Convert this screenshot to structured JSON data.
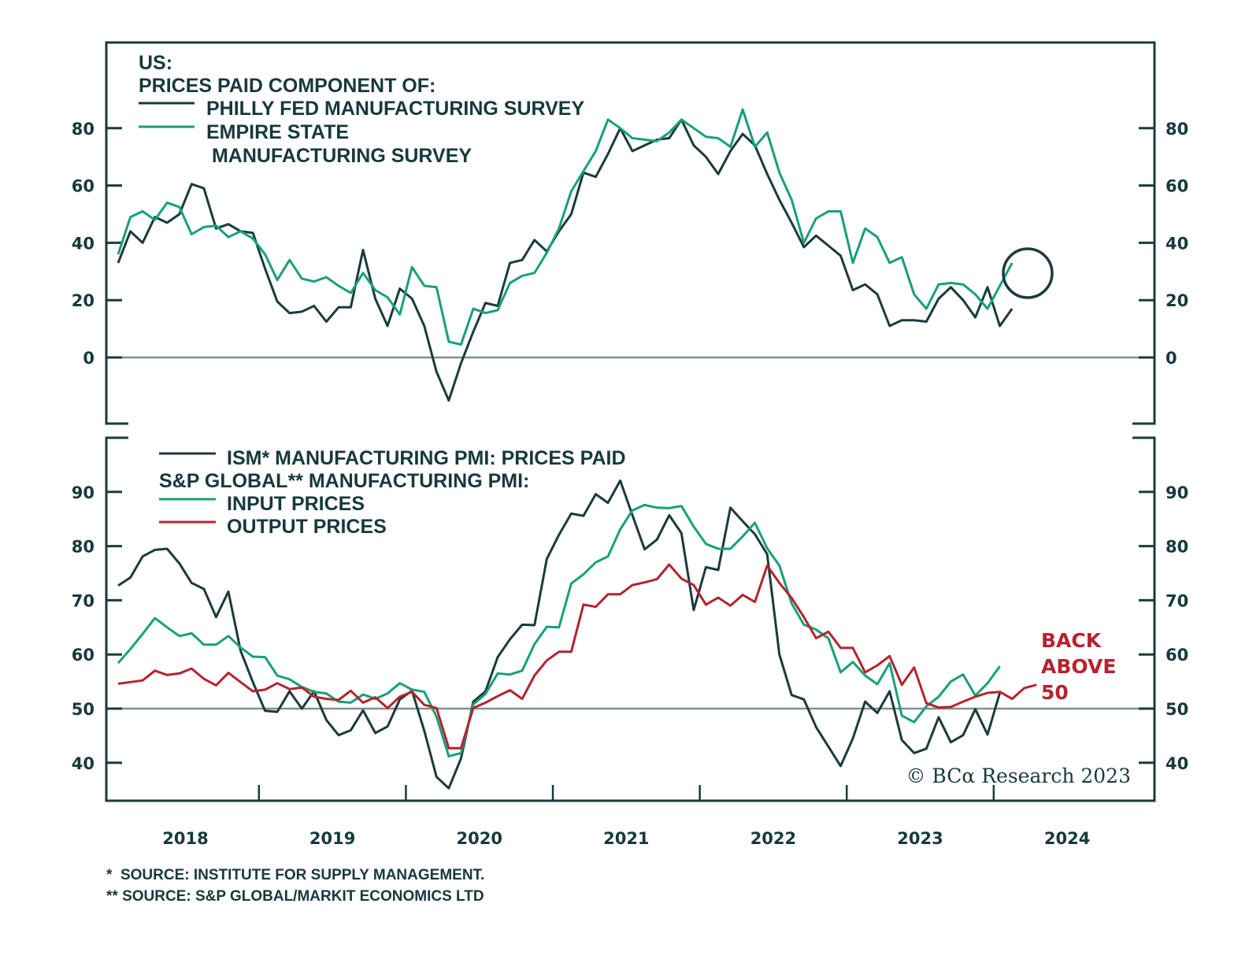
{
  "chart_data": [
    {
      "type": "line",
      "panel": "top",
      "title_lines": [
        "US:",
        "PRICES PAID COMPONENT OF:"
      ],
      "xlabel": "",
      "ylabel": "",
      "ylim": [
        -22,
        108
      ],
      "yticks": [
        0,
        20,
        40,
        60,
        80
      ],
      "zero_line": 0,
      "legend": "top-left",
      "x_start": "2018-01",
      "x_frequency": "monthly",
      "series": [
        {
          "name": "PHILLY FED MANUFACTURING SURVEY",
          "color": "#1b3a3e",
          "values": [
            33,
            44,
            40,
            49,
            47,
            50,
            60.5,
            59,
            45,
            46.5,
            44,
            43.5,
            31,
            19.5,
            15.5,
            16,
            18,
            12.5,
            17.5,
            17.5,
            37.5,
            20.5,
            11,
            24,
            20.5,
            11,
            -5,
            -15,
            -2,
            9,
            19,
            18,
            33,
            34,
            41,
            37,
            44,
            50,
            64.5,
            63,
            71,
            80,
            72,
            74,
            76,
            76.5,
            83,
            74,
            70,
            64,
            72,
            78,
            74,
            64,
            55,
            47,
            38.5,
            42.5,
            39,
            35.5,
            23.5,
            25.5,
            22,
            11,
            13,
            13,
            12.5,
            20.5,
            24.5,
            20,
            14,
            24.5,
            11,
            17
          ]
        },
        {
          "name": "EMPIRE STATE MANUFACTURING SURVEY",
          "label_lines": [
            "EMPIRE STATE",
            " MANUFACTURING SURVEY"
          ],
          "color": "#17a07a",
          "values": [
            36,
            49,
            51,
            48,
            54,
            52.5,
            43,
            45.5,
            46,
            42,
            44,
            41.5,
            36,
            27,
            34,
            27.5,
            26.5,
            28,
            25,
            22.5,
            29.5,
            23.5,
            21,
            15,
            31.5,
            25,
            24.5,
            5.5,
            4.5,
            17,
            15.5,
            16.5,
            26,
            28.5,
            29.5,
            36.5,
            45,
            58,
            65,
            72,
            83,
            80,
            76.5,
            76,
            75.5,
            78.5,
            83,
            80,
            77,
            76.5,
            73.5,
            86.5,
            73.5,
            78.5,
            64.5,
            55,
            40,
            48.5,
            51,
            51,
            33,
            45,
            42,
            33,
            35,
            22,
            17,
            25.5,
            26,
            25.5,
            22,
            17,
            25,
            33
          ]
        }
      ],
      "annotations": [
        {
          "type": "circle",
          "target": "EMPIRE STATE latest reading (2024-02)"
        }
      ]
    },
    {
      "type": "line",
      "panel": "bottom",
      "xlabel": "",
      "ylabel": "",
      "ylim": [
        33,
        99
      ],
      "yticks": [
        40,
        50,
        60,
        70,
        80,
        90
      ],
      "reference_line": 50,
      "legend": "top-left",
      "legend_group_label": "S&P GLOBAL** MANUFACTURING PMI:",
      "x_start": "2018-01",
      "x_frequency": "monthly",
      "xtick_labels": [
        "2018",
        "2019",
        "2020",
        "2021",
        "2022",
        "2023",
        "2024"
      ],
      "series": [
        {
          "name": "ISM* MANUFACTURING PMI: PRICES PAID",
          "color": "#1b3a3e",
          "values": [
            72.7,
            74.2,
            78.1,
            79.3,
            79.5,
            76.8,
            73.2,
            72.1,
            66.9,
            71.6,
            60.7,
            54.9,
            49.6,
            49.4,
            53.2,
            50,
            53.2,
            47.9,
            45.1,
            46,
            49.7,
            45.5,
            46.7,
            51.7,
            53.3,
            45.9,
            37.4,
            35.3,
            40.8,
            51.3,
            53.2,
            59.5,
            62.8,
            65.5,
            65.4,
            77.6,
            82.1,
            86,
            85.6,
            89.6,
            88,
            92.1,
            85.7,
            79.4,
            81.2,
            85.7,
            82.4,
            68.2,
            76.1,
            75.6,
            87.1,
            84.6,
            82.2,
            78.5,
            60,
            52.5,
            51.7,
            46.6,
            43,
            39.4,
            44.5,
            51.3,
            49.2,
            53.2,
            44.2,
            41.8,
            42.6,
            48.4,
            43.8,
            45.1,
            49.9,
            45.2,
            52.9
          ]
        },
        {
          "name": "INPUT PRICES",
          "color": "#17a07a",
          "values": [
            58.4,
            61,
            63.8,
            66.7,
            65,
            63.4,
            63.9,
            61.8,
            61.8,
            63.4,
            61.3,
            59.6,
            59.5,
            56.1,
            55.4,
            54,
            53.1,
            52.8,
            51.3,
            51.1,
            52.6,
            51.8,
            52.8,
            54.7,
            53.5,
            53.1,
            48.5,
            41.2,
            41.8,
            50.8,
            52.7,
            56.5,
            56.3,
            57,
            61.9,
            65.1,
            65,
            73.1,
            74.8,
            77,
            78.1,
            83.1,
            86.6,
            87.6,
            87.1,
            87,
            87.4,
            83.6,
            80.4,
            79.5,
            79.5,
            81.8,
            84.3,
            79.6,
            76.4,
            69.4,
            65.5,
            64.6,
            63,
            56.7,
            58.6,
            56.1,
            54.5,
            58.4,
            48.7,
            47.5,
            50.4,
            52.2,
            55,
            56.3,
            52.4,
            54.7,
            57.8
          ]
        },
        {
          "name": "OUTPUT PRICES",
          "color": "#b5232e",
          "values": [
            54.6,
            54.9,
            55.2,
            57,
            56.2,
            56.5,
            57.4,
            55.5,
            54.3,
            56.6,
            54.9,
            53.2,
            53.5,
            54.7,
            53.6,
            53.9,
            52.2,
            51.8,
            51.6,
            53.3,
            51.1,
            52.1,
            50.1,
            52.2,
            53.1,
            50.7,
            50.1,
            42.7,
            42.7,
            50.1,
            51.1,
            52.3,
            53.4,
            51.8,
            56.1,
            58.9,
            60.5,
            60.5,
            69.2,
            68.8,
            71.1,
            71.1,
            72.8,
            73.3,
            73.9,
            76.6,
            74,
            72.8,
            69.2,
            70.5,
            69,
            71,
            69.7,
            76.4,
            73.2,
            70.4,
            66.9,
            63,
            64.2,
            61.2,
            61.2,
            56.7,
            58,
            59.7,
            54.4,
            57.6,
            51,
            50.2,
            50.3,
            51.3,
            52.2,
            52.9,
            53.1,
            51.8,
            53.8,
            54.4
          ]
        }
      ],
      "annotation_text": [
        "BACK",
        "ABOVE",
        "50"
      ]
    }
  ],
  "top_panel": {
    "title_line1": "US:",
    "title_line2": "PRICES PAID COMPONENT OF:",
    "legend": [
      {
        "label": "PHILLY FED MANUFACTURING SURVEY"
      },
      {
        "label": "EMPIRE STATE"
      },
      {
        "label": " MANUFACTURING SURVEY"
      }
    ],
    "yticks": [
      "80",
      "60",
      "40",
      "20",
      "0"
    ]
  },
  "bottom_panel": {
    "legend": [
      {
        "label": "ISM* MANUFACTURING PMI: PRICES PAID"
      },
      {
        "label": "S&P GLOBAL** MANUFACTURING PMI:"
      },
      {
        "label": "INPUT PRICES"
      },
      {
        "label": "OUTPUT PRICES"
      }
    ],
    "yticks": [
      "90",
      "80",
      "70",
      "60",
      "50",
      "40"
    ],
    "annotation": [
      "BACK",
      "ABOVE",
      "50"
    ],
    "copyright": "© BCα Research 2023"
  },
  "xaxis": {
    "years": [
      "2018",
      "2019",
      "2020",
      "2021",
      "2022",
      "2023",
      "2024"
    ]
  },
  "footnotes": [
    "*  SOURCE: INSTITUTE FOR SUPPLY MANAGEMENT.",
    "** SOURCE: S&P GLOBAL/MARKIT ECONOMICS LTD"
  ],
  "colors": {
    "frame": "#1b3a3e",
    "dark_series": "#1b3a3e",
    "green_series": "#17a07a",
    "red_series": "#b5232e",
    "reference_line": "#7f918f"
  }
}
